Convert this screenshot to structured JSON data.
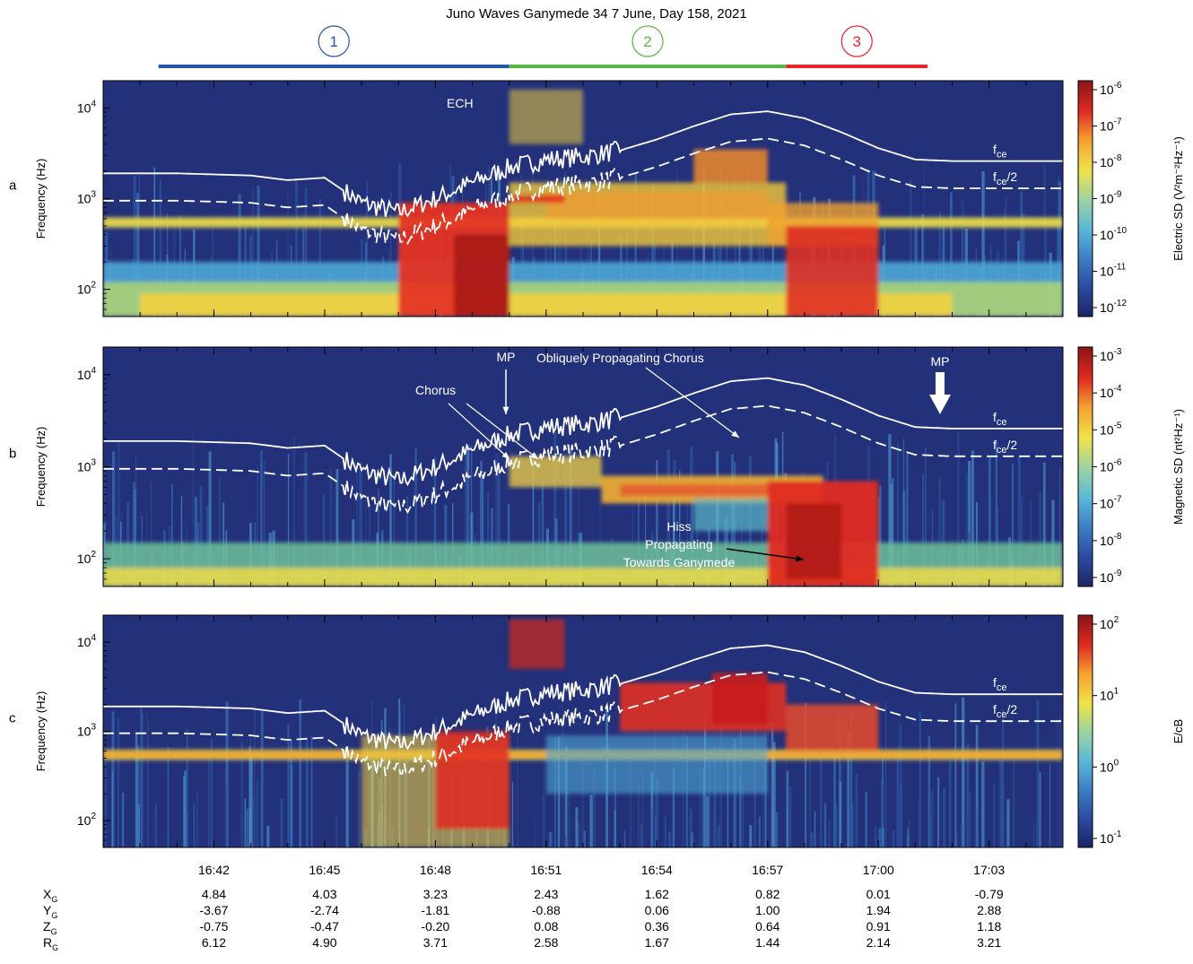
{
  "title": "Juno Waves  Ganymede 34   7 June, Day 158, 2021",
  "intervals": [
    {
      "label": "1",
      "color": "#2456a6",
      "start": "16:40:30",
      "end": "16:50:00"
    },
    {
      "label": "2",
      "color": "#5ab548",
      "start": "16:50:00",
      "end": "16:57:30"
    },
    {
      "label": "3",
      "color": "#e8242b",
      "start": "16:57:30",
      "end": "17:01:20"
    }
  ],
  "panels": [
    {
      "letter": "a",
      "ylabel": "Frequency (Hz)",
      "yticks": [
        "10",
        "10",
        "10"
      ],
      "ytick_exps": [
        "4",
        "3",
        "2"
      ],
      "cbar_label": "Electric SD (V²m⁻²Hz⁻¹)",
      "cbar_ticks": [
        "10",
        "10",
        "10",
        "10",
        "10",
        "10",
        "10"
      ],
      "cbar_exps": [
        "-6",
        "-7",
        "-8",
        "-9",
        "-10",
        "-11",
        "-12"
      ],
      "annotations": [
        "ECH"
      ],
      "fce_label": "f",
      "fce_sub": "ce",
      "fce2_label": "f",
      "fce2_sub": "ce",
      "fce2_suffix": "/2"
    },
    {
      "letter": "b",
      "ylabel": "Frequency (Hz)",
      "yticks": [
        "10",
        "10",
        "10"
      ],
      "ytick_exps": [
        "4",
        "3",
        "2"
      ],
      "cbar_label": "Magnetic SD (nt²Hz⁻¹)",
      "cbar_ticks": [
        "10",
        "10",
        "10",
        "10",
        "10",
        "10",
        "10"
      ],
      "cbar_exps": [
        "-3",
        "-4",
        "-5",
        "-6",
        "-7",
        "-8",
        "-9"
      ],
      "annotations": [
        "MP",
        "Obliquely Propagating Chorus",
        "Chorus",
        "MP",
        "Hiss",
        "Propagating",
        "Towards Ganymede"
      ],
      "fce_label": "f",
      "fce_sub": "ce",
      "fce2_label": "f",
      "fce2_sub": "ce",
      "fce2_suffix": "/2"
    },
    {
      "letter": "c",
      "ylabel": "Frequency (Hz)",
      "yticks": [
        "10",
        "10",
        "10"
      ],
      "ytick_exps": [
        "4",
        "3",
        "2"
      ],
      "cbar_label": "E/cB",
      "cbar_ticks": [
        "10",
        "10",
        "10",
        "10"
      ],
      "cbar_exps": [
        "2",
        "1",
        "0",
        "-1"
      ],
      "annotations": [],
      "fce_label": "f",
      "fce_sub": "ce",
      "fce2_label": "f",
      "fce2_sub": "ce",
      "fce2_suffix": "/2"
    }
  ],
  "ephemeris": {
    "row_labels": [
      "X",
      "Y",
      "Z",
      "R"
    ],
    "row_subs": [
      "G",
      "G",
      "G",
      "G"
    ],
    "times": [
      "16:42",
      "16:45",
      "16:48",
      "16:51",
      "16:54",
      "16:57",
      "17:00",
      "17:03"
    ],
    "X": [
      "4.84",
      "4.03",
      "3.23",
      "2.43",
      "1.62",
      "0.82",
      "0.01",
      "-0.79"
    ],
    "Y": [
      "-3.67",
      "-2.74",
      "-1.81",
      "-0.88",
      "0.06",
      "1.00",
      "1.94",
      "2.88"
    ],
    "Z": [
      "-0.75",
      "-0.47",
      "-0.20",
      "0.08",
      "0.36",
      "0.64",
      "0.91",
      "1.18"
    ],
    "R": [
      "6.12",
      "4.90",
      "3.71",
      "2.58",
      "1.67",
      "1.44",
      "2.14",
      "3.21"
    ]
  },
  "chart_data": {
    "type": "heatmap",
    "title": "Juno Waves  Ganymede 34   7 June, Day 158, 2021",
    "ylabel": "Frequency (Hz)",
    "yscale": "log",
    "ylim": [
      50,
      20000
    ],
    "xlim": [
      "16:39",
      "17:05"
    ],
    "fce": {
      "time": [
        "16:39",
        "16:41",
        "16:42",
        "16:43",
        "16:44",
        "16:45",
        "16:46",
        "16:47",
        "16:48",
        "16:49",
        "16:50",
        "16:51",
        "16:52",
        "16:53",
        "16:54",
        "16:55",
        "16:56",
        "16:57",
        "16:58",
        "16:59",
        "17:00",
        "17:01",
        "17:02",
        "17:03",
        "17:05"
      ],
      "hz": [
        1900,
        1900,
        1850,
        1800,
        1600,
        1700,
        900,
        700,
        1000,
        1500,
        2200,
        2700,
        2900,
        3400,
        4500,
        6300,
        8500,
        9200,
        7700,
        5400,
        3600,
        2700,
        2600,
        2600,
        2600
      ]
    },
    "fce_half": "fce / 2"
  },
  "colors": {
    "spec_bg": "#23307a",
    "curve": "#ffffff"
  }
}
